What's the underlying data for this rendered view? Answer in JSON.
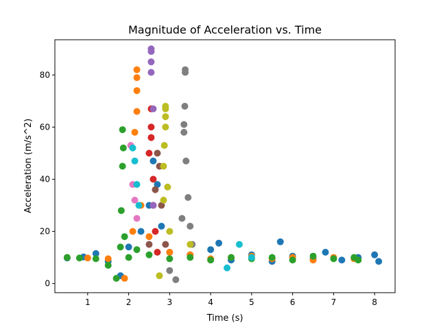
{
  "chart_data": {
    "type": "scatter",
    "title": "Magnitude of Acceleration vs. Time",
    "xlabel": "Time (s)",
    "ylabel": "Acceleration (m/s^2)",
    "xlim": [
      0.2,
      8.5
    ],
    "ylim": [
      -3.5,
      93.5
    ],
    "xticks": [
      1,
      2,
      3,
      4,
      5,
      6,
      7,
      8
    ],
    "yticks": [
      0,
      20,
      40,
      60,
      80
    ],
    "grid": false,
    "legend": "none",
    "series": [
      {
        "color": "#1f77b4",
        "points": [
          [
            0.5,
            9.8
          ],
          [
            0.9,
            10.2
          ],
          [
            1.2,
            11.5
          ],
          [
            1.5,
            8.5
          ],
          [
            1.8,
            3.0
          ],
          [
            2.0,
            14.0
          ],
          [
            2.3,
            20.0
          ],
          [
            2.5,
            30.0
          ],
          [
            2.6,
            47.0
          ],
          [
            2.7,
            38.0
          ],
          [
            2.8,
            22.0
          ],
          [
            3.0,
            12.0
          ],
          [
            3.5,
            11.0
          ],
          [
            4.0,
            13.0
          ],
          [
            4.2,
            15.5
          ],
          [
            4.5,
            9.0
          ],
          [
            5.0,
            11.0
          ],
          [
            5.5,
            8.5
          ],
          [
            5.7,
            16.0
          ],
          [
            6.0,
            10.5
          ],
          [
            6.5,
            9.5
          ],
          [
            6.8,
            12.0
          ],
          [
            7.2,
            9.0
          ],
          [
            7.6,
            10.0
          ],
          [
            8.0,
            11.0
          ],
          [
            8.1,
            8.5
          ]
        ]
      },
      {
        "color": "#ff7f0e",
        "points": [
          [
            0.5,
            10.0
          ],
          [
            1.0,
            9.8
          ],
          [
            1.5,
            9.5
          ],
          [
            1.9,
            2.0
          ],
          [
            2.1,
            20.0
          ],
          [
            2.15,
            58.0
          ],
          [
            2.2,
            82.0
          ],
          [
            2.2,
            79.0
          ],
          [
            2.2,
            74.0
          ],
          [
            2.2,
            66.0
          ],
          [
            2.3,
            30.0
          ],
          [
            2.5,
            18.0
          ],
          [
            3.0,
            12.0
          ],
          [
            3.5,
            11.0
          ],
          [
            4.0,
            9.5
          ],
          [
            4.5,
            10.0
          ],
          [
            5.0,
            10.5
          ],
          [
            5.5,
            9.5
          ],
          [
            6.0,
            10.0
          ],
          [
            6.5,
            9.0
          ],
          [
            7.0,
            10.0
          ],
          [
            7.5,
            9.5
          ]
        ]
      },
      {
        "color": "#2ca02c",
        "points": [
          [
            0.5,
            10.0
          ],
          [
            0.8,
            9.8
          ],
          [
            1.2,
            9.5
          ],
          [
            1.5,
            7.0
          ],
          [
            1.7,
            2.0
          ],
          [
            1.8,
            14.0
          ],
          [
            1.82,
            28.0
          ],
          [
            1.85,
            45.0
          ],
          [
            1.85,
            59.0
          ],
          [
            1.87,
            52.0
          ],
          [
            1.9,
            18.0
          ],
          [
            2.0,
            10.0
          ],
          [
            2.2,
            13.0
          ],
          [
            2.5,
            11.0
          ],
          [
            3.0,
            9.5
          ],
          [
            3.5,
            10.0
          ],
          [
            4.0,
            9.0
          ],
          [
            4.5,
            10.0
          ],
          [
            5.0,
            9.5
          ],
          [
            5.5,
            10.0
          ],
          [
            6.0,
            9.0
          ],
          [
            6.5,
            10.5
          ],
          [
            7.0,
            9.5
          ],
          [
            7.5,
            10.0
          ],
          [
            7.6,
            9.0
          ]
        ]
      },
      {
        "color": "#d62728",
        "points": [
          [
            2.5,
            50.0
          ],
          [
            2.55,
            67.0
          ],
          [
            2.55,
            60.0
          ],
          [
            2.55,
            56.0
          ],
          [
            2.6,
            40.0
          ],
          [
            2.6,
            30.0
          ],
          [
            2.65,
            20.0
          ],
          [
            2.7,
            12.0
          ]
        ]
      },
      {
        "color": "#9467bd",
        "points": [
          [
            2.55,
            90.0
          ],
          [
            2.55,
            89.0
          ],
          [
            2.55,
            85.0
          ],
          [
            2.55,
            81.0
          ],
          [
            2.6,
            67.0
          ],
          [
            2.6,
            30.0
          ]
        ]
      },
      {
        "color": "#8c564b",
        "points": [
          [
            2.5,
            15.0
          ],
          [
            2.65,
            36.0
          ],
          [
            2.7,
            50.0
          ],
          [
            2.75,
            45.0
          ],
          [
            2.8,
            30.0
          ],
          [
            2.9,
            15.0
          ]
        ]
      },
      {
        "color": "#e377c2",
        "points": [
          [
            2.05,
            53.0
          ],
          [
            2.1,
            38.0
          ],
          [
            2.15,
            32.0
          ],
          [
            2.2,
            25.0
          ]
        ]
      },
      {
        "color": "#7f7f7f",
        "points": [
          [
            3.0,
            5.0
          ],
          [
            3.15,
            1.5
          ],
          [
            3.3,
            25.0
          ],
          [
            3.35,
            58.0
          ],
          [
            3.35,
            61.0
          ],
          [
            3.37,
            68.0
          ],
          [
            3.38,
            82.0
          ],
          [
            3.38,
            81.0
          ],
          [
            3.4,
            47.0
          ],
          [
            3.45,
            33.0
          ],
          [
            3.5,
            22.0
          ],
          [
            3.55,
            15.0
          ]
        ]
      },
      {
        "color": "#bcbd22",
        "points": [
          [
            2.75,
            3.0
          ],
          [
            2.85,
            32.0
          ],
          [
            2.85,
            45.0
          ],
          [
            2.87,
            53.0
          ],
          [
            2.9,
            60.0
          ],
          [
            2.9,
            64.0
          ],
          [
            2.9,
            67.0
          ],
          [
            2.9,
            68.0
          ],
          [
            2.95,
            37.0
          ],
          [
            3.0,
            20.0
          ],
          [
            3.5,
            15.0
          ]
        ]
      },
      {
        "color": "#17becf",
        "points": [
          [
            2.1,
            52.0
          ],
          [
            2.15,
            47.0
          ],
          [
            2.2,
            38.0
          ],
          [
            2.25,
            30.0
          ],
          [
            4.4,
            6.0
          ],
          [
            4.7,
            15.0
          ],
          [
            5.0,
            10.0
          ]
        ]
      }
    ]
  }
}
